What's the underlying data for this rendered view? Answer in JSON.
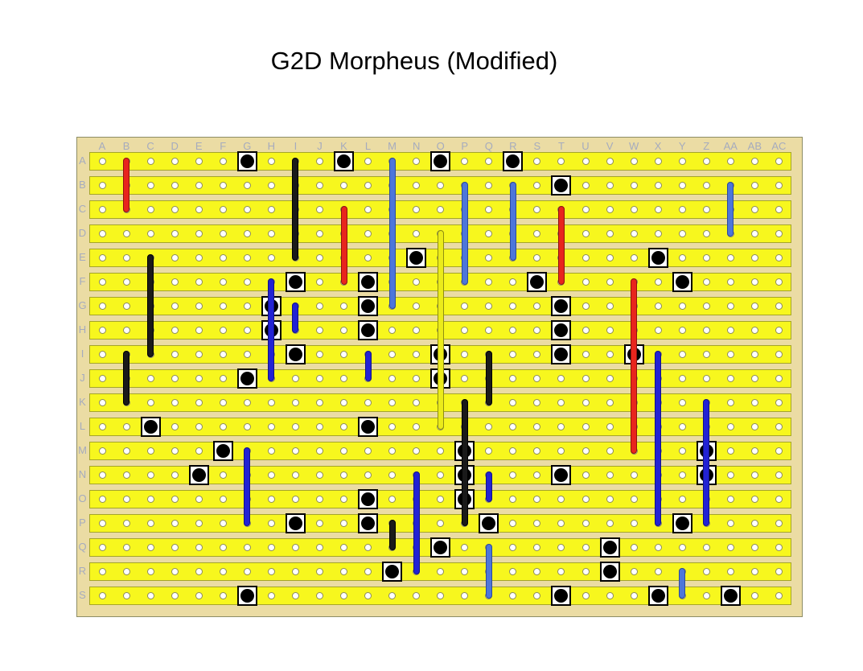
{
  "title": "G2D Morpheus (Modified)",
  "board": {
    "columns": [
      "A",
      "B",
      "C",
      "D",
      "E",
      "F",
      "G",
      "H",
      "I",
      "J",
      "K",
      "L",
      "M",
      "N",
      "O",
      "P",
      "Q",
      "R",
      "S",
      "T",
      "U",
      "V",
      "W",
      "X",
      "Y",
      "Z",
      "AA",
      "AB",
      "AC"
    ],
    "rows": [
      "A",
      "B",
      "C",
      "D",
      "E",
      "F",
      "G",
      "H",
      "I",
      "J",
      "K",
      "L",
      "M",
      "N",
      "O",
      "P",
      "Q",
      "R",
      "S"
    ],
    "palette": {
      "red": {
        "fill": "#e8251d",
        "edge": "#8f1210"
      },
      "black": {
        "fill": "#1a1a1a",
        "edge": "#000000"
      },
      "blue": {
        "fill": "#2222d4",
        "edge": "#12128a"
      },
      "cornflower": {
        "fill": "#4d76da",
        "edge": "#2c4a9e"
      },
      "yellow": {
        "fill": "#ebeb1a",
        "edge": "#8f8f10"
      }
    },
    "board_colors": {
      "substrate": "#ebdca4",
      "strip": "#f7f71e",
      "strip_edge": "#a5a52a",
      "hole_ring": "#8b8b5e",
      "label_text": "#a5abbe"
    },
    "wires": [
      {
        "col": "B",
        "from": "A",
        "to": "C",
        "color": "red"
      },
      {
        "col": "I",
        "from": "A",
        "to": "E",
        "color": "black"
      },
      {
        "col": "M",
        "from": "A",
        "to": "G",
        "color": "cornflower"
      },
      {
        "col": "P",
        "from": "B",
        "to": "F",
        "color": "cornflower"
      },
      {
        "col": "R",
        "from": "B",
        "to": "E",
        "color": "cornflower"
      },
      {
        "col": "AA",
        "from": "B",
        "to": "D",
        "color": "cornflower"
      },
      {
        "col": "K",
        "from": "C",
        "to": "F",
        "color": "red"
      },
      {
        "col": "T",
        "from": "C",
        "to": "F",
        "color": "red"
      },
      {
        "col": "O",
        "from": "D",
        "to": "L",
        "color": "yellow"
      },
      {
        "col": "C",
        "from": "E",
        "to": "I",
        "color": "black"
      },
      {
        "col": "H",
        "from": "F",
        "to": "J",
        "color": "blue"
      },
      {
        "col": "W",
        "from": "F",
        "to": "M",
        "color": "red"
      },
      {
        "col": "I",
        "from": "G",
        "to": "H",
        "color": "blue"
      },
      {
        "col": "B",
        "from": "I",
        "to": "K",
        "color": "black"
      },
      {
        "col": "L",
        "from": "I",
        "to": "J",
        "color": "blue"
      },
      {
        "col": "Q",
        "from": "I",
        "to": "K",
        "color": "black"
      },
      {
        "col": "X",
        "from": "I",
        "to": "P",
        "color": "blue"
      },
      {
        "col": "P",
        "from": "K",
        "to": "P",
        "color": "black"
      },
      {
        "col": "Z",
        "from": "K",
        "to": "P",
        "color": "blue"
      },
      {
        "col": "G",
        "from": "M",
        "to": "P",
        "color": "blue"
      },
      {
        "col": "N",
        "from": "N",
        "to": "R",
        "color": "blue"
      },
      {
        "col": "Q",
        "from": "N",
        "to": "O",
        "color": "blue"
      },
      {
        "col": "M",
        "from": "P",
        "to": "Q",
        "color": "black"
      },
      {
        "col": "Q",
        "from": "Q",
        "to": "S",
        "color": "cornflower"
      },
      {
        "col": "Y",
        "from": "R",
        "to": "S",
        "color": "cornflower"
      }
    ],
    "dots": [
      {
        "col": "G",
        "row": "A"
      },
      {
        "col": "K",
        "row": "A"
      },
      {
        "col": "O",
        "row": "A"
      },
      {
        "col": "R",
        "row": "A"
      },
      {
        "col": "T",
        "row": "B"
      },
      {
        "col": "N",
        "row": "E"
      },
      {
        "col": "X",
        "row": "E"
      },
      {
        "col": "I",
        "row": "F"
      },
      {
        "col": "L",
        "row": "F"
      },
      {
        "col": "S",
        "row": "F"
      },
      {
        "col": "Y",
        "row": "F"
      },
      {
        "col": "H",
        "row": "G"
      },
      {
        "col": "L",
        "row": "G"
      },
      {
        "col": "T",
        "row": "G"
      },
      {
        "col": "H",
        "row": "H"
      },
      {
        "col": "L",
        "row": "H"
      },
      {
        "col": "T",
        "row": "H"
      },
      {
        "col": "I",
        "row": "I"
      },
      {
        "col": "O",
        "row": "I"
      },
      {
        "col": "T",
        "row": "I"
      },
      {
        "col": "W",
        "row": "I"
      },
      {
        "col": "G",
        "row": "J"
      },
      {
        "col": "O",
        "row": "J"
      },
      {
        "col": "C",
        "row": "L"
      },
      {
        "col": "L",
        "row": "L"
      },
      {
        "col": "F",
        "row": "M"
      },
      {
        "col": "P",
        "row": "M"
      },
      {
        "col": "Z",
        "row": "M"
      },
      {
        "col": "E",
        "row": "N"
      },
      {
        "col": "P",
        "row": "N"
      },
      {
        "col": "T",
        "row": "N"
      },
      {
        "col": "Z",
        "row": "N"
      },
      {
        "col": "L",
        "row": "O"
      },
      {
        "col": "P",
        "row": "O"
      },
      {
        "col": "I",
        "row": "P"
      },
      {
        "col": "L",
        "row": "P"
      },
      {
        "col": "Q",
        "row": "P"
      },
      {
        "col": "Y",
        "row": "P"
      },
      {
        "col": "O",
        "row": "Q"
      },
      {
        "col": "V",
        "row": "Q"
      },
      {
        "col": "M",
        "row": "R"
      },
      {
        "col": "V",
        "row": "R"
      },
      {
        "col": "G",
        "row": "S"
      },
      {
        "col": "T",
        "row": "S"
      },
      {
        "col": "X",
        "row": "S"
      },
      {
        "col": "AA",
        "row": "S"
      }
    ]
  }
}
